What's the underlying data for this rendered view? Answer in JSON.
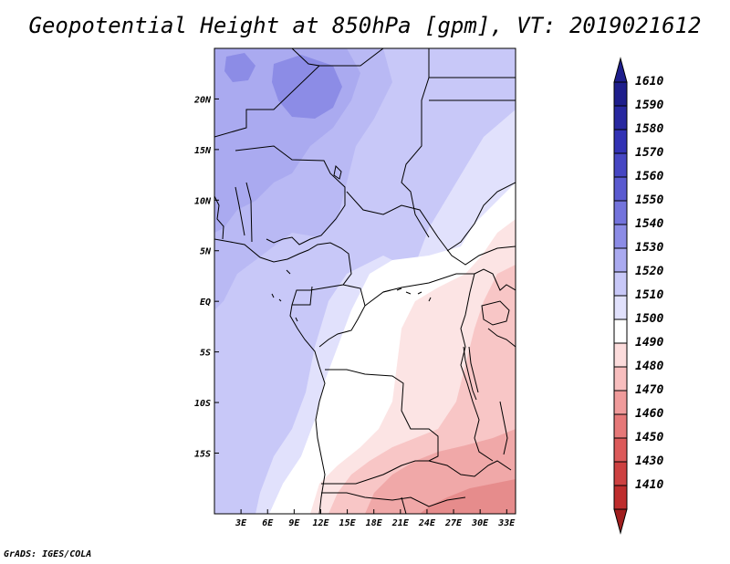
{
  "title": "Geopotential Height at 850hPa [gpm], VT: 2019021612",
  "credit": "GrADS: IGES/COLA",
  "map": {
    "lon_range": [
      0,
      34
    ],
    "lat_range": [
      -21,
      25
    ],
    "x_ticks": [
      {
        "lon": 3,
        "label": "3E"
      },
      {
        "lon": 6,
        "label": "6E"
      },
      {
        "lon": 9,
        "label": "9E"
      },
      {
        "lon": 12,
        "label": "12E"
      },
      {
        "lon": 15,
        "label": "15E"
      },
      {
        "lon": 18,
        "label": "18E"
      },
      {
        "lon": 21,
        "label": "21E"
      },
      {
        "lon": 24,
        "label": "24E"
      },
      {
        "lon": 27,
        "label": "27E"
      },
      {
        "lon": 30,
        "label": "30E"
      },
      {
        "lon": 33,
        "label": "33E"
      }
    ],
    "y_ticks": [
      {
        "lat": 20,
        "label": "20N"
      },
      {
        "lat": 15,
        "label": "15N"
      },
      {
        "lat": 10,
        "label": "10N"
      },
      {
        "lat": 5,
        "label": "5N"
      },
      {
        "lat": 0,
        "label": "EQ"
      },
      {
        "lat": -5,
        "label": "5S"
      },
      {
        "lat": -10,
        "label": "10S"
      },
      {
        "lat": -15,
        "label": "15S"
      }
    ]
  },
  "colorbar": {
    "levels": [
      {
        "label": "1610",
        "color": "#1e1e8c"
      },
      {
        "label": "1590",
        "color": "#2828a0"
      },
      {
        "label": "1580",
        "color": "#3232b4"
      },
      {
        "label": "1570",
        "color": "#4646c3"
      },
      {
        "label": "1560",
        "color": "#5a5ad0"
      },
      {
        "label": "1550",
        "color": "#7373dc"
      },
      {
        "label": "1540",
        "color": "#8c8ce6"
      },
      {
        "label": "1530",
        "color": "#aaaaf0"
      },
      {
        "label": "1520",
        "color": "#c8c8f8"
      },
      {
        "label": "1510",
        "color": "#e1e1fc"
      },
      {
        "label": "1500",
        "color": "#ffffff"
      },
      {
        "label": "1490",
        "color": "#fcdcdc"
      },
      {
        "label": "1480",
        "color": "#f8bebe"
      },
      {
        "label": "1470",
        "color": "#f09b9b"
      },
      {
        "label": "1460",
        "color": "#e67878"
      },
      {
        "label": "1450",
        "color": "#dc5a5a"
      },
      {
        "label": "1430",
        "color": "#cd4141"
      },
      {
        "label": "1410",
        "color": "#be2d2d"
      }
    ],
    "bottom_cap_color": "#a01e1e"
  },
  "field_colors": {
    "c1560": "#8c8ce6",
    "c1550": "#aaaaf0",
    "c1540": "#b9b9f4",
    "c1530": "#c8c8f8",
    "c1520": "#e1e1fc",
    "c1510": "#ffffff",
    "c1500": "#fce4e4",
    "c1490": "#f8c6c6",
    "c1480": "#f0a8a8",
    "c1470": "#e68c8c"
  }
}
